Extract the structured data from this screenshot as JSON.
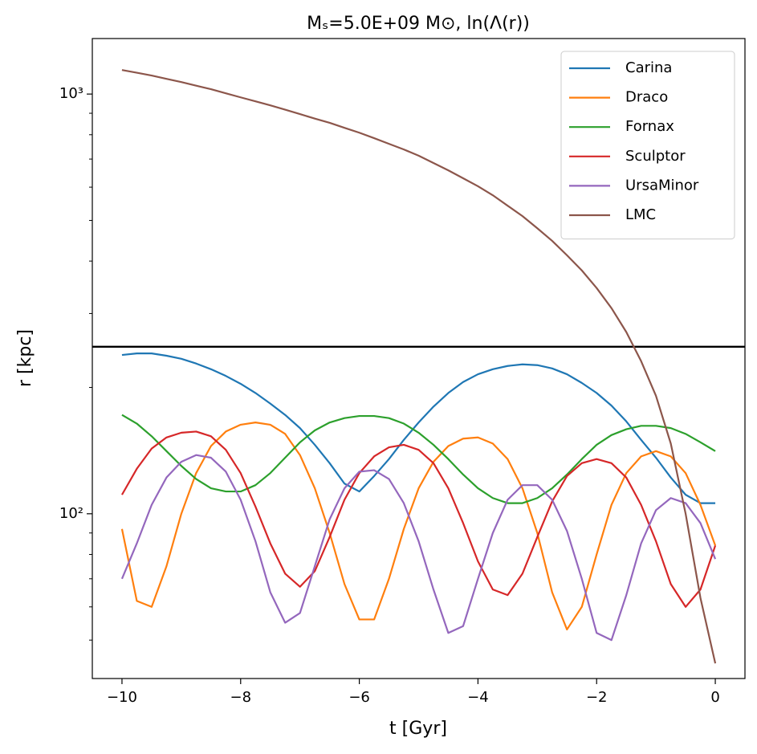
{
  "chart_data": {
    "type": "line",
    "title": "Mₛ=5.0E+09 M⊙, ln(Λ(r))",
    "x_label": "t [Gyr]",
    "y_label": "r [kpc]",
    "x": [
      -10,
      -9.75,
      -9.5,
      -9.25,
      -9,
      -8.75,
      -8.5,
      -8.25,
      -8,
      -7.75,
      -7.5,
      -7.25,
      -7,
      -6.75,
      -6.5,
      -6.25,
      -6,
      -5.75,
      -5.5,
      -5.25,
      -5,
      -4.75,
      -4.5,
      -4.25,
      -4,
      -3.75,
      -3.5,
      -3.25,
      -3,
      -2.75,
      -2.5,
      -2.25,
      -2,
      -1.75,
      -1.5,
      -1.25,
      -1,
      -0.75,
      -0.5,
      -0.25,
      0
    ],
    "series": [
      {
        "name": "Carina",
        "color": "#1f77b4",
        "values": [
          239,
          241,
          241,
          238,
          234,
          228,
          221,
          213,
          204,
          194,
          183,
          172,
          160,
          146,
          132,
          118,
          113,
          123,
          135,
          150,
          165,
          180,
          194,
          206,
          215,
          221,
          225,
          227,
          226,
          222,
          215,
          205,
          194,
          181,
          166,
          150,
          136,
          122,
          111,
          106,
          106
        ]
      },
      {
        "name": "Draco",
        "color": "#ff7f0e",
        "values": [
          92,
          62,
          60,
          75,
          100,
          125,
          145,
          157,
          163,
          165,
          163,
          155,
          138,
          115,
          90,
          68,
          56,
          56,
          70,
          92,
          115,
          133,
          145,
          151,
          152,
          147,
          135,
          115,
          90,
          65,
          53,
          60,
          80,
          105,
          125,
          137,
          141,
          137,
          125,
          105,
          84
        ]
      },
      {
        "name": "Fornax",
        "color": "#2ca02c",
        "values": [
          172,
          164,
          153,
          141,
          130,
          121,
          115,
          113,
          113,
          117,
          125,
          136,
          148,
          158,
          165,
          169,
          171,
          171,
          169,
          164,
          156,
          146,
          135,
          124,
          115,
          109,
          106,
          106,
          109,
          115,
          124,
          135,
          146,
          154,
          159,
          162,
          162,
          160,
          155,
          148,
          141
        ]
      },
      {
        "name": "Sculptor",
        "color": "#d62728",
        "values": [
          111,
          128,
          143,
          152,
          156,
          157,
          153,
          142,
          125,
          104,
          85,
          72,
          67,
          73,
          88,
          108,
          125,
          137,
          144,
          146,
          142,
          132,
          115,
          95,
          77,
          66,
          64,
          72,
          88,
          107,
          123,
          132,
          135,
          132,
          122,
          105,
          86,
          68,
          60,
          66,
          84
        ]
      },
      {
        "name": "UrsaMinor",
        "color": "#9467bd",
        "values": [
          70,
          85,
          105,
          122,
          133,
          138,
          136,
          126,
          108,
          86,
          65,
          55,
          58,
          75,
          97,
          115,
          126,
          127,
          121,
          106,
          86,
          66,
          52,
          54,
          70,
          90,
          108,
          117,
          117,
          108,
          91,
          70,
          52,
          50,
          64,
          85,
          102,
          109,
          106,
          95,
          78
        ]
      },
      {
        "name": "LMC",
        "color": "#8c564b",
        "values": [
          1141,
          1124,
          1107,
          1087,
          1068,
          1047,
          1027,
          1004,
          982,
          961,
          940,
          918,
          896,
          874,
          854,
          831,
          809,
          785,
          761,
          738,
          713,
          685,
          658,
          630,
          603,
          574,
          542,
          512,
          479,
          447,
          413,
          380,
          345,
          309,
          271,
          231,
          191,
          147,
          100,
          63,
          44
        ]
      }
    ],
    "hline": 250,
    "hline_color": "#000000",
    "xlim": [
      -10.5,
      0.5
    ],
    "xticks": [
      {
        "value": -10,
        "label": "−10"
      },
      {
        "value": -8,
        "label": "−8"
      },
      {
        "value": -6,
        "label": "−6"
      },
      {
        "value": -4,
        "label": "−4"
      },
      {
        "value": -2,
        "label": "−2"
      },
      0
    ],
    "ylim": [
      40.5,
      1356
    ],
    "y_log": true,
    "yticks": [
      {
        "value": 100,
        "label": "10²"
      },
      {
        "value": 1000,
        "label": "10³"
      }
    ],
    "yticks_minor": [
      50,
      60,
      70,
      80,
      90,
      200,
      300,
      400,
      500,
      600,
      700,
      800,
      900
    ],
    "grid": false,
    "legend": "upper right"
  }
}
